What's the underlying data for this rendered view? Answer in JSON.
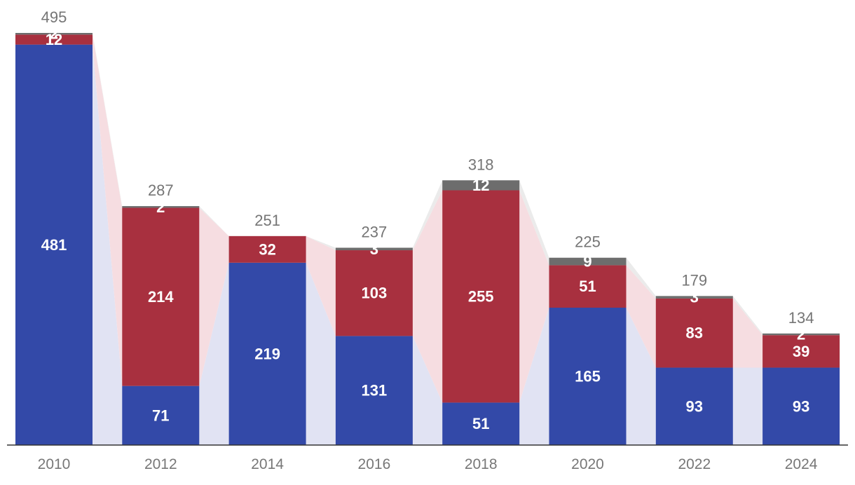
{
  "chart_data": {
    "type": "bar",
    "stacked": true,
    "categories": [
      "2010",
      "2012",
      "2014",
      "2016",
      "2018",
      "2020",
      "2022",
      "2024"
    ],
    "series": [
      {
        "values": [
          481,
          71,
          219,
          131,
          51,
          165,
          93,
          93
        ],
        "color": "#3349a8"
      },
      {
        "values": [
          12,
          214,
          32,
          103,
          255,
          51,
          83,
          39
        ],
        "color": "#a8303f"
      },
      {
        "values": [
          2,
          2,
          0,
          3,
          12,
          9,
          3,
          2
        ],
        "color": "#6d6d6d"
      }
    ],
    "segment_labels": [
      [
        "481",
        "71",
        "219",
        "131",
        "51",
        "165",
        "93",
        "93"
      ],
      [
        "12",
        "214",
        "32",
        "103",
        "255",
        "51",
        "83",
        "39"
      ],
      [
        "2",
        "2",
        "",
        "3",
        "12",
        "9",
        "3",
        "2"
      ]
    ],
    "totals": [
      495,
      287,
      251,
      237,
      318,
      225,
      179,
      134
    ],
    "total_labels": [
      "495",
      "287",
      "251",
      "237",
      "318",
      "225",
      "179",
      "134"
    ],
    "connector_colors": [
      "#e1e3f3",
      "#f6dde1",
      "#ebebeb"
    ],
    "ylim": [
      0,
      495
    ],
    "grid": false,
    "legend": "none"
  }
}
